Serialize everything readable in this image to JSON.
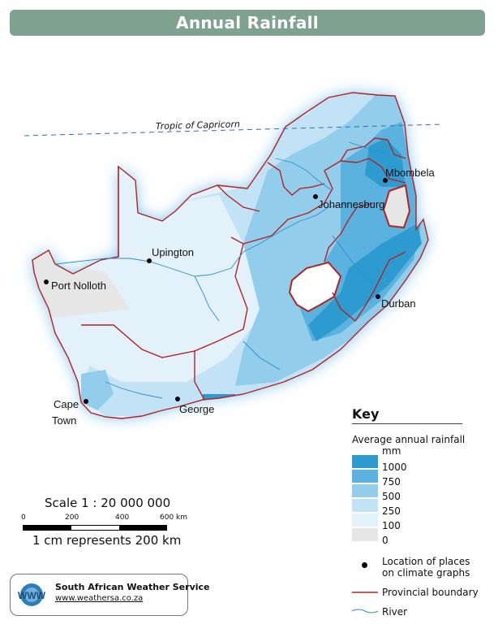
{
  "title": "Annual Rainfall",
  "tropic_label": "Tropic of Capricorn",
  "places": [
    {
      "name": "Mbombela"
    },
    {
      "name": "Johannesburg"
    },
    {
      "name": "Upington"
    },
    {
      "name": "Port Nolloth"
    },
    {
      "name": "Durban"
    },
    {
      "name": "Cape"
    },
    {
      "name": "Town"
    },
    {
      "name": "George"
    }
  ],
  "key": {
    "title": "Key",
    "subtitle": "Average annual rainfall",
    "unit": "mm",
    "classes": [
      {
        "label": "1000",
        "color": "#2d9bd0"
      },
      {
        "label": "750",
        "color": "#5cb2df"
      },
      {
        "label": "500",
        "color": "#92cdeb"
      },
      {
        "label": "250",
        "color": "#c2e2f6"
      },
      {
        "label": "100",
        "color": "#e3f1fb"
      },
      {
        "label": "0",
        "color": "#e6e6e6"
      }
    ],
    "location_label_1": "Location of places",
    "location_label_2": "on climate graphs",
    "boundary_label": "Provincial boundary",
    "river_label": "River",
    "boundary_color": "#b22222",
    "river_color": "#2b8fd0"
  },
  "scale": {
    "title": "Scale 1 : 20 000 000",
    "ticks": [
      "0",
      "200",
      "400",
      "600 km"
    ],
    "note": "1 cm represents 200 km"
  },
  "credit": {
    "logo_text": "WWW",
    "name": "South African Weather Service",
    "url": "www.weathersa.co.za"
  }
}
